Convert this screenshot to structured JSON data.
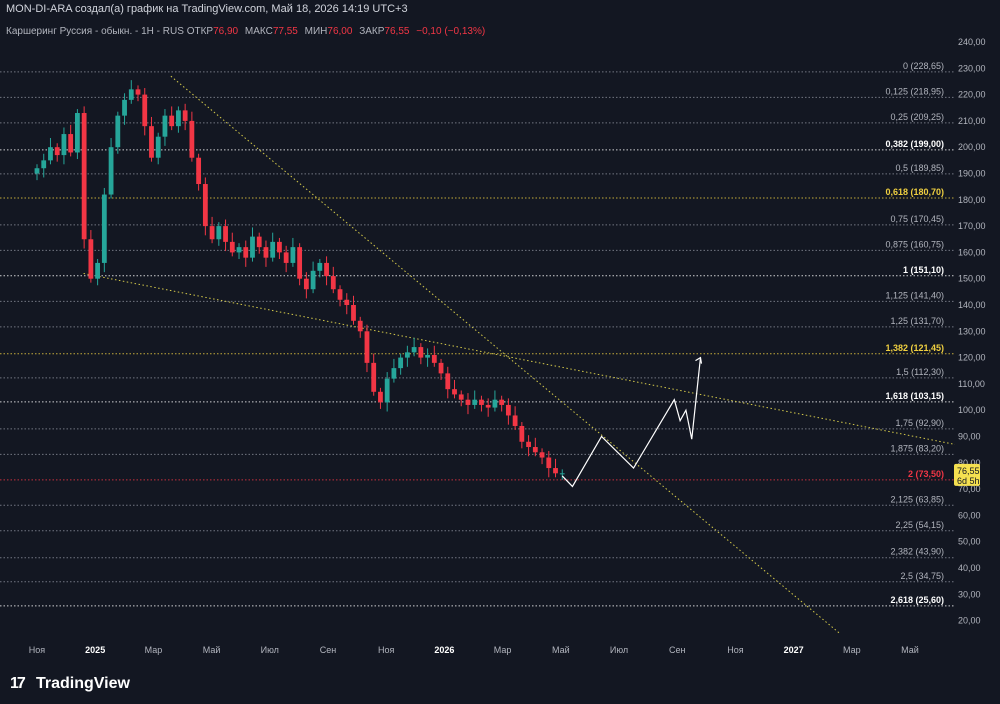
{
  "header": {
    "title": "MON-DI-ARA создал(а) график на TradingView.com, Май 18, 2026 14:19 UTC+3"
  },
  "legend": {
    "symbol": "Каршеринг Руссия - обыкн. - 1Н - RUS",
    "open_label": "ОТКР",
    "open_value": "76,90",
    "high_label": "МАКС",
    "high_value": "77,55",
    "low_label": "МИН",
    "low_value": "76,00",
    "close_label": "ЗАКР",
    "close_value": "76,55",
    "change": "−0,10 (−0,13%)"
  },
  "footer": {
    "brand": "TradingView",
    "logo_mark": "17"
  },
  "colors": {
    "background": "#131722",
    "up": "#26a69a",
    "down": "#f23645",
    "text": "#d1d4dc",
    "gold": "#f0d040",
    "trendline": "#d4c94a",
    "price_tag": "#f5e050"
  },
  "chart_data": {
    "type": "candlestick",
    "ylim": [
      14,
      244
    ],
    "y_ticks": [
      "240,00",
      "230,00",
      "220,00",
      "210,00",
      "200,00",
      "190,00",
      "180,00",
      "170,00",
      "160,00",
      "150,00",
      "140,00",
      "130,00",
      "120,00",
      "110,00",
      "100,00",
      "90,00",
      "80,00",
      "70,00",
      "60,00",
      "50,00",
      "40,00",
      "30,00",
      "20,00"
    ],
    "y_tick_values": [
      240,
      230,
      220,
      210,
      200,
      190,
      180,
      170,
      160,
      150,
      140,
      130,
      120,
      110,
      100,
      90,
      80,
      70,
      60,
      50,
      40,
      30,
      20
    ],
    "x_tick_labels": [
      "Ноя",
      "2025",
      "Мар",
      "Май",
      "Июл",
      "Сен",
      "Ноя",
      "2026",
      "Мар",
      "Май",
      "Июл",
      "Сен",
      "Ноя",
      "2027",
      "Мар",
      "Май"
    ],
    "x_tick_bold": [
      false,
      true,
      false,
      false,
      false,
      false,
      false,
      true,
      false,
      false,
      false,
      false,
      false,
      true,
      false,
      false
    ],
    "x_tick_months": [
      0,
      2,
      4,
      6,
      8,
      10,
      12,
      14,
      16,
      18,
      20,
      22,
      24,
      26,
      28,
      30
    ],
    "candles_month_range": [
      0,
      18.05
    ],
    "closes": [
      192,
      195,
      200,
      197,
      205,
      198,
      213,
      165,
      150,
      156,
      182,
      200,
      212,
      218,
      222,
      220,
      208,
      196,
      204,
      212,
      208,
      214,
      210,
      196,
      186,
      170,
      165,
      170,
      164,
      160,
      162,
      158,
      166,
      162,
      158,
      164,
      160,
      156,
      162,
      150,
      146,
      153,
      156,
      151,
      146,
      142,
      140,
      134,
      130,
      118,
      107,
      103,
      112,
      116,
      120,
      122,
      124,
      120,
      121,
      118,
      114,
      108,
      106,
      104,
      102,
      104,
      102,
      101,
      104,
      102,
      98,
      94,
      88,
      86,
      84,
      82,
      78,
      76,
      76
    ],
    "current_price": 76.55,
    "current_price_label": "76,55",
    "countdown_label": "6d 5h",
    "fib_levels": [
      {
        "label": "0 (228,65)",
        "value": 228.65,
        "highlight": "normal"
      },
      {
        "label": "0,125 (218,95)",
        "value": 218.95,
        "highlight": "normal"
      },
      {
        "label": "0,25 (209,25)",
        "value": 209.25,
        "highlight": "normal"
      },
      {
        "label": "0,382 (199,00)",
        "value": 199.0,
        "highlight": "key"
      },
      {
        "label": "0,5 (189,85)",
        "value": 189.85,
        "highlight": "normal"
      },
      {
        "label": "0,618 (180,70)",
        "value": 180.7,
        "highlight": "gold"
      },
      {
        "label": "0,75 (170,45)",
        "value": 170.45,
        "highlight": "normal"
      },
      {
        "label": "0,875 (160,75)",
        "value": 160.75,
        "highlight": "normal"
      },
      {
        "label": "1 (151,10)",
        "value": 151.1,
        "highlight": "key"
      },
      {
        "label": "1,125 (141,40)",
        "value": 141.4,
        "highlight": "normal"
      },
      {
        "label": "1,25 (131,70)",
        "value": 131.7,
        "highlight": "normal"
      },
      {
        "label": "1,382 (121,45)",
        "value": 121.45,
        "highlight": "gold"
      },
      {
        "label": "1,5 (112,30)",
        "value": 112.3,
        "highlight": "normal"
      },
      {
        "label": "1,618 (103,15)",
        "value": 103.15,
        "highlight": "key"
      },
      {
        "label": "1,75 (92,90)",
        "value": 92.9,
        "highlight": "normal"
      },
      {
        "label": "1,875 (83,20)",
        "value": 83.2,
        "highlight": "normal"
      },
      {
        "label": "2 (73,50)",
        "value": 73.5,
        "highlight": "red"
      },
      {
        "label": "2,125 (63,85)",
        "value": 63.85,
        "highlight": "normal"
      },
      {
        "label": "2,25 (54,15)",
        "value": 54.15,
        "highlight": "normal"
      },
      {
        "label": "2,382 (43,90)",
        "value": 43.9,
        "highlight": "normal"
      },
      {
        "label": "2,5 (34,75)",
        "value": 34.75,
        "highlight": "normal"
      },
      {
        "label": "2,618 (25,60)",
        "value": 25.6,
        "highlight": "key"
      }
    ],
    "trendlines": [
      {
        "name": "descending-trendline",
        "points": [
          [
            4.6,
            227
          ],
          [
            27.6,
            15
          ]
        ]
      },
      {
        "name": "support-trendline",
        "points": [
          [
            1.6,
            152
          ],
          [
            32,
            86
          ]
        ]
      }
    ],
    "projection_path": [
      [
        18.05,
        75
      ],
      [
        18.4,
        71
      ],
      [
        19.4,
        90
      ],
      [
        20.5,
        78
      ],
      [
        21.9,
        104
      ],
      [
        22.1,
        96
      ],
      [
        22.3,
        100
      ],
      [
        22.5,
        89
      ],
      [
        22.8,
        120
      ]
    ]
  }
}
